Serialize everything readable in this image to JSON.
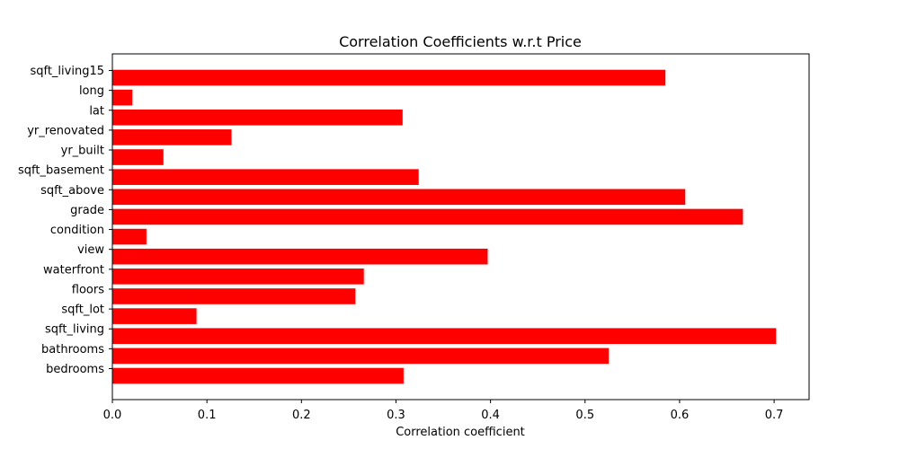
{
  "chart_data": {
    "type": "bar",
    "orientation": "horizontal",
    "title": "Correlation Coefficients w.r.t Price",
    "xlabel": "Correlation coefficient",
    "ylabel": "",
    "xlim": [
      0,
      0.737
    ],
    "xticks": [
      "0.0",
      "0.1",
      "0.2",
      "0.3",
      "0.4",
      "0.5",
      "0.6",
      "0.7"
    ],
    "bar_color": "#ff0000",
    "grid": false,
    "categories": [
      "bedrooms",
      "bathrooms",
      "sqft_living",
      "sqft_lot",
      "floors",
      "waterfront",
      "view",
      "condition",
      "grade",
      "sqft_above",
      "sqft_basement",
      "yr_built",
      "yr_renovated",
      "lat",
      "long",
      "sqft_living15"
    ],
    "values": [
      0.308,
      0.525,
      0.702,
      0.089,
      0.257,
      0.266,
      0.397,
      0.036,
      0.667,
      0.606,
      0.324,
      0.054,
      0.126,
      0.307,
      0.021,
      0.585
    ]
  }
}
